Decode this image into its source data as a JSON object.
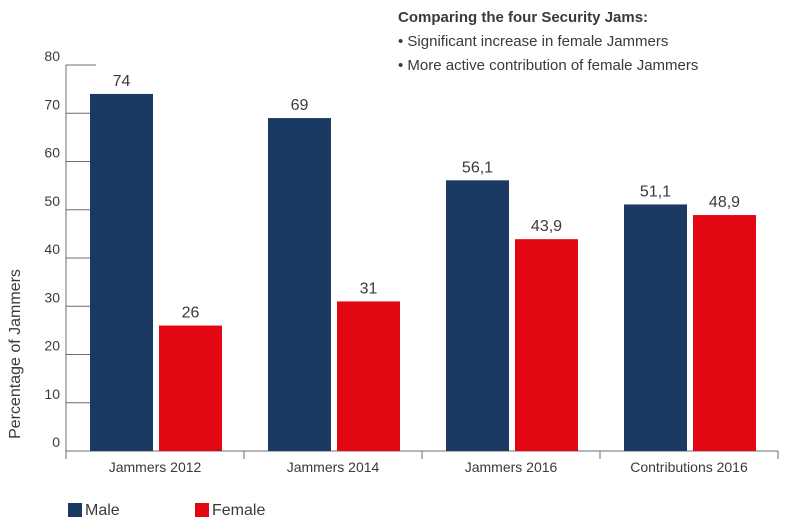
{
  "chart_data": {
    "type": "bar",
    "categories": [
      "Jammers 2012",
      "Jammers 2014",
      "Jammers 2016",
      "Contributions 2016"
    ],
    "series": [
      {
        "name": "Male",
        "values": [
          74,
          69,
          56.1,
          51.1
        ],
        "labels": [
          "74",
          "69",
          "56,1",
          "51,1"
        ],
        "color": "#1a3a64"
      },
      {
        "name": "Female",
        "values": [
          26,
          31,
          43.9,
          48.9
        ],
        "labels": [
          "26",
          "31",
          "43,9",
          "48,9"
        ],
        "color": "#e30613"
      }
    ],
    "ylabel": "Percentage of Jammers",
    "ylim": [
      0,
      80
    ],
    "yticks": [
      0,
      10,
      20,
      30,
      40,
      50,
      60,
      70,
      80
    ],
    "grid": false,
    "legend": "bottom-left",
    "annotation": {
      "title": "Comparing the four Security Jams:",
      "lines": [
        "• Significant increase in female Jammers",
        "• More active contribution of female Jammers"
      ]
    }
  }
}
